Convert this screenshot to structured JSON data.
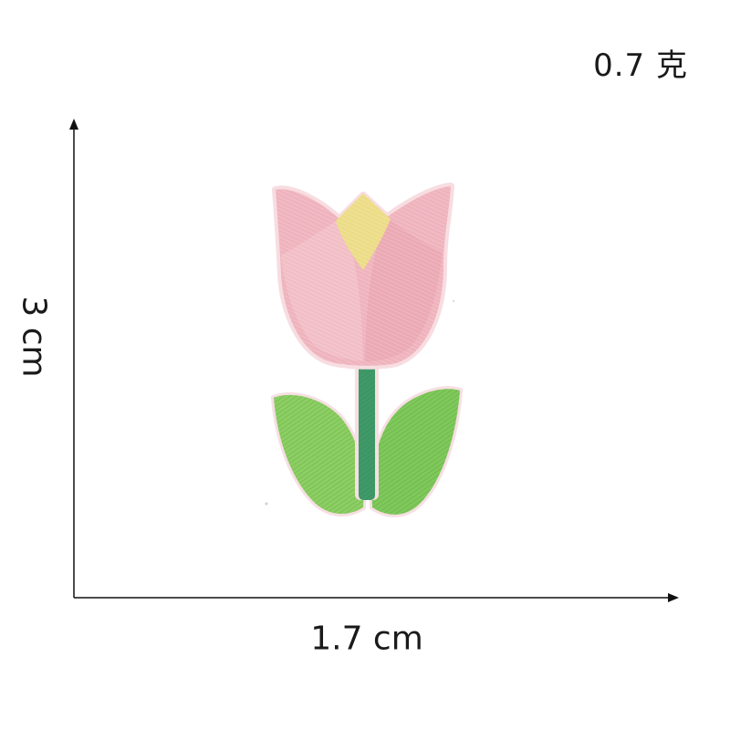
{
  "weight": {
    "text": "0.7 克"
  },
  "dimensions": {
    "height": "3 cm",
    "width": "1.7 cm"
  },
  "product": {
    "subject": "embroidered tulip patch",
    "colors": {
      "petal": "#f2b6c1",
      "petal_shade": "#e89aa8",
      "bud": "#ecd97a",
      "stem": "#3f9a6a",
      "leaf": "#8ccf62",
      "leaf_shade": "#6fbf4a",
      "edge": "#f7d9de"
    }
  }
}
